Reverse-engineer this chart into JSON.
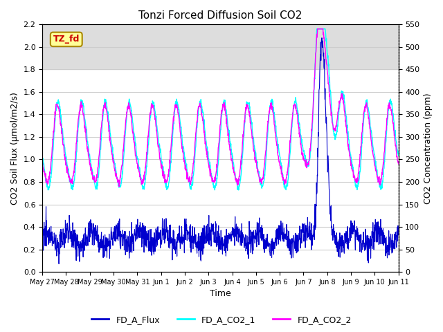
{
  "title": "Tonzi Forced Diffusion Soil CO2",
  "xlabel": "Time",
  "ylabel_left": "CO2 Soil Flux (μmol/m2/s)",
  "ylabel_right": "CO2 Concentration (ppm)",
  "ylim_left": [
    0.0,
    2.2
  ],
  "ylim_right": [
    0,
    550
  ],
  "yticks_left": [
    0.0,
    0.2,
    0.4,
    0.6,
    0.8,
    1.0,
    1.2,
    1.4,
    1.6,
    1.8,
    2.0,
    2.2
  ],
  "yticks_right": [
    0,
    50,
    100,
    150,
    200,
    250,
    300,
    350,
    400,
    450,
    500,
    550
  ],
  "xtick_positions": [
    0,
    1,
    2,
    3,
    4,
    5,
    6,
    7,
    8,
    9,
    10,
    11,
    12,
    13,
    14,
    15
  ],
  "xtick_labels": [
    "May 27",
    "May 28",
    "May 29",
    "May 30",
    "May 31",
    "Jun 1",
    "Jun 2",
    "Jun 3",
    "Jun 4",
    "Jun 5",
    "Jun 6",
    "Jun 7",
    "Jun 8",
    "Jun 9",
    "Jun 10",
    "Jun 11"
  ],
  "color_flux": "#0000CD",
  "color_co2_1": "#00FFFF",
  "color_co2_2": "#FF00FF",
  "legend_label_flux": "FD_A_Flux",
  "legend_label_co2_1": "FD_A_CO2_1",
  "legend_label_co2_2": "FD_A_CO2_2",
  "site_label": "TZ_fd",
  "site_label_color": "#CC0000",
  "site_label_bg": "#FFFF99",
  "grid_color": "#CCCCCC",
  "shaded_band_ymin": 1.8,
  "shaded_band_ymax": 2.2,
  "shaded_band_color": "#DDDDDD",
  "figsize": [
    6.4,
    4.8
  ],
  "dpi": 100,
  "n_days": 15,
  "pts_per_day": 96
}
